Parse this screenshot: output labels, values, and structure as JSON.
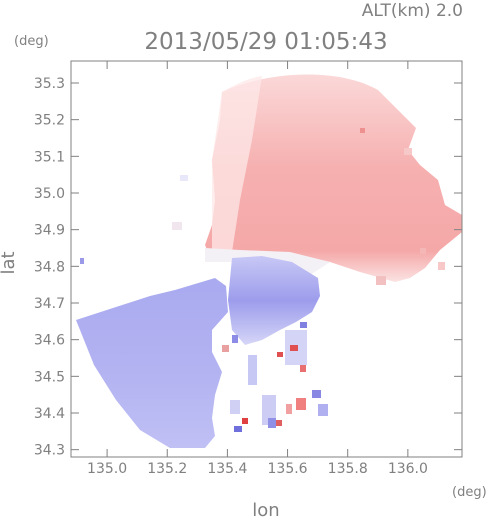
{
  "header": {
    "altitude_label": "ALT(km)  2.0",
    "timestamp": "2013/05/29  01:05:43",
    "y_unit": "(deg)",
    "x_unit": "(deg)"
  },
  "chart_data": {
    "type": "heatmap",
    "title": "2013/05/29  01:05:43",
    "xlabel": "lon",
    "ylabel": "lat",
    "xlim": [
      134.88,
      136.18
    ],
    "ylim": [
      34.28,
      35.36
    ],
    "x_ticks": [
      "135.0",
      "135.2",
      "135.4",
      "135.6",
      "135.8",
      "136.0"
    ],
    "y_ticks": [
      "34.3",
      "34.4",
      "34.5",
      "34.6",
      "34.7",
      "34.8",
      "34.9",
      "35.0",
      "35.1",
      "35.2",
      "35.3"
    ],
    "grid": false,
    "colors": {
      "positive": "#f4a0a0",
      "negative": "#a6a6ee",
      "zero": "#ffffff",
      "axis": "#808080"
    }
  }
}
